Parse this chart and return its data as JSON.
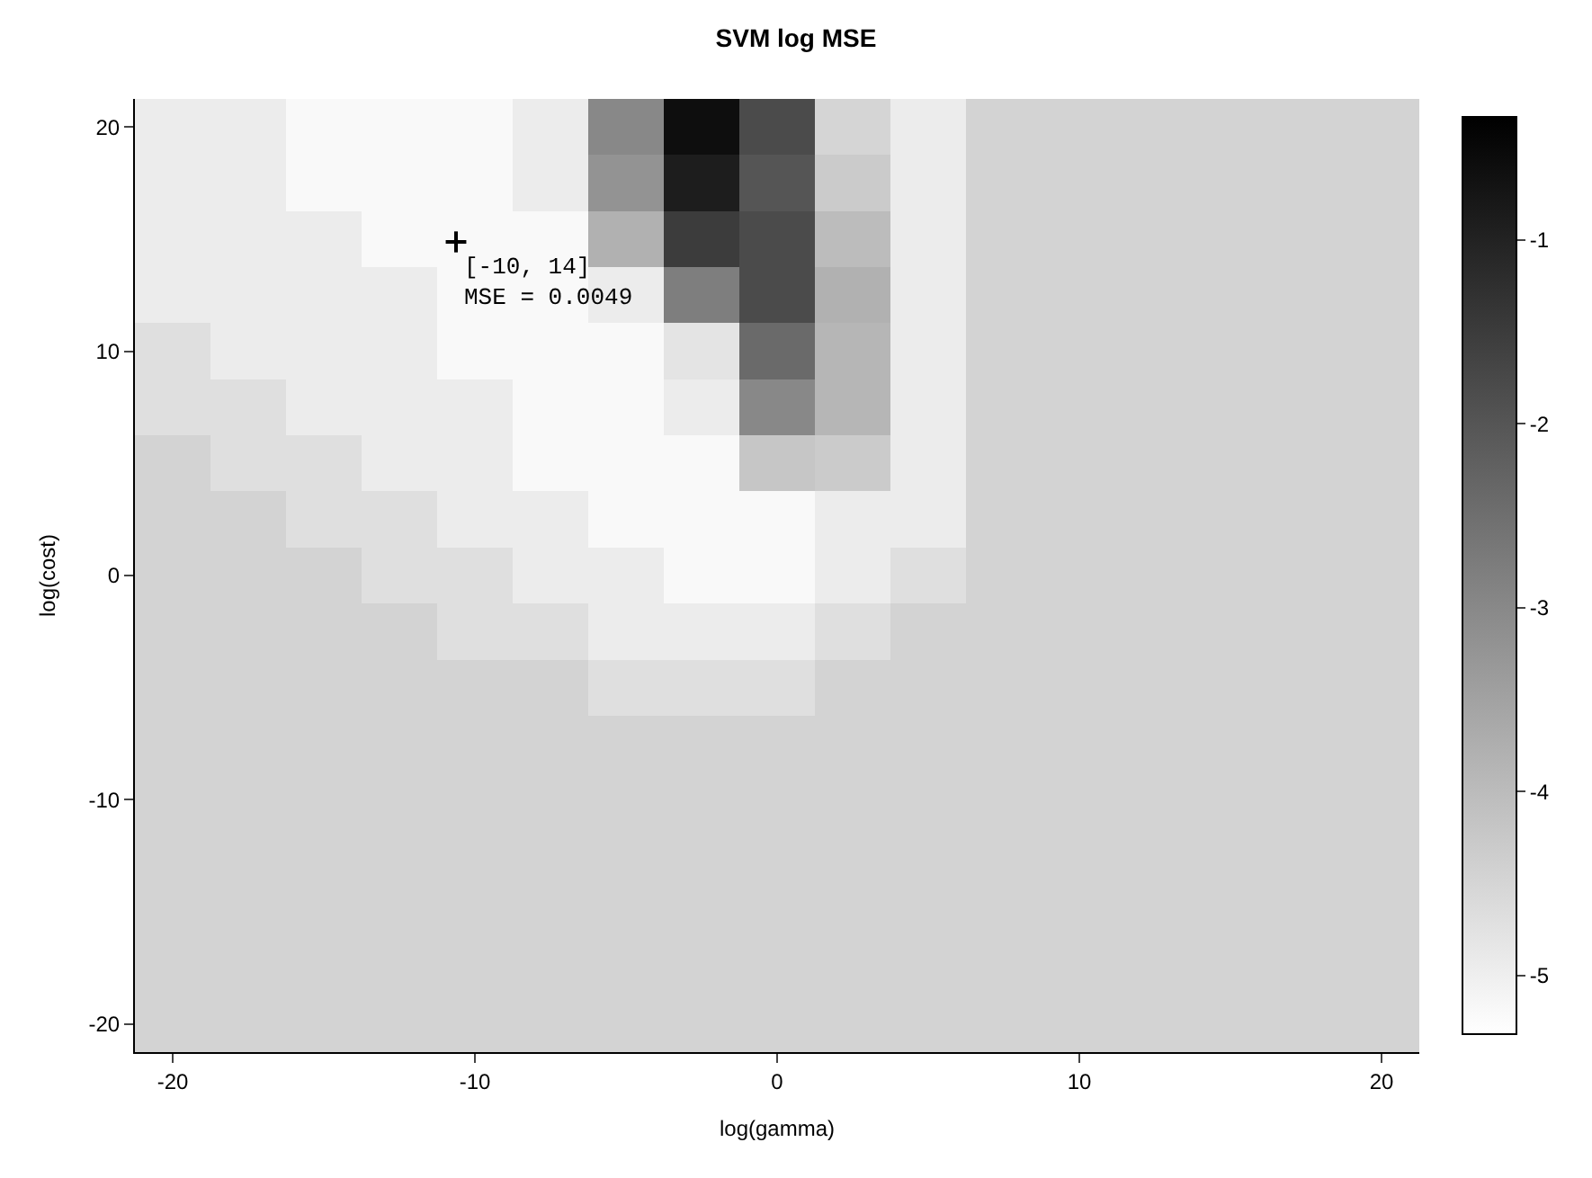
{
  "chart_data": {
    "type": "heatmap",
    "title": "SVM log MSE",
    "xlabel": "log(gamma)",
    "ylabel": "log(cost)",
    "categories": [
      "-20",
      null,
      null,
      null,
      "-10",
      null,
      null,
      null,
      "0",
      null,
      null,
      null,
      "10",
      null,
      null,
      null,
      "20"
    ],
    "y_categories": [
      "20",
      null,
      null,
      null,
      "10",
      null,
      null,
      null,
      "0",
      null,
      null,
      null,
      "-10",
      null,
      null,
      null,
      "-20"
    ],
    "cells": [
      [
        -4.95,
        -4.95,
        -5.2,
        -5.2,
        -5.2,
        -4.95,
        -3.0,
        -0.6,
        -1.8,
        -4.5,
        -4.95,
        -4.45,
        -4.45,
        -4.45,
        -4.45,
        -4.45,
        -4.45
      ],
      [
        -4.95,
        -4.95,
        -5.2,
        -5.2,
        -5.2,
        -4.95,
        -3.2,
        -0.9,
        -2.0,
        -4.3,
        -4.95,
        -4.45,
        -4.45,
        -4.45,
        -4.45,
        -4.45,
        -4.45
      ],
      [
        -4.95,
        -4.95,
        -4.95,
        -5.2,
        -5.2,
        -5.2,
        -3.8,
        -1.5,
        -1.8,
        -4.0,
        -4.95,
        -4.45,
        -4.45,
        -4.45,
        -4.45,
        -4.45,
        -4.45
      ],
      [
        -4.95,
        -4.95,
        -4.95,
        -4.95,
        -5.2,
        -5.2,
        -4.95,
        -2.8,
        -1.8,
        -3.8,
        -4.95,
        -4.45,
        -4.45,
        -4.45,
        -4.45,
        -4.45,
        -4.45
      ],
      [
        -4.7,
        -4.95,
        -4.95,
        -4.95,
        -5.2,
        -5.2,
        -5.2,
        -4.8,
        -2.4,
        -3.9,
        -4.95,
        -4.45,
        -4.45,
        -4.45,
        -4.45,
        -4.45,
        -4.45
      ],
      [
        -4.7,
        -4.7,
        -4.95,
        -4.95,
        -4.95,
        -5.2,
        -5.2,
        -4.95,
        -3.0,
        -3.9,
        -4.95,
        -4.45,
        -4.45,
        -4.45,
        -4.45,
        -4.45,
        -4.45
      ],
      [
        -4.45,
        -4.7,
        -4.7,
        -4.95,
        -4.95,
        -5.2,
        -5.2,
        -5.2,
        -4.2,
        -4.3,
        -4.95,
        -4.45,
        -4.45,
        -4.45,
        -4.45,
        -4.45,
        -4.45
      ],
      [
        -4.45,
        -4.45,
        -4.7,
        -4.7,
        -4.95,
        -4.95,
        -5.2,
        -5.2,
        -5.2,
        -4.95,
        -4.95,
        -4.45,
        -4.45,
        -4.45,
        -4.45,
        -4.45,
        -4.45
      ],
      [
        -4.45,
        -4.45,
        -4.45,
        -4.7,
        -4.7,
        -4.95,
        -4.95,
        -5.2,
        -5.2,
        -4.95,
        -4.7,
        -4.45,
        -4.45,
        -4.45,
        -4.45,
        -4.45,
        -4.45
      ],
      [
        -4.45,
        -4.45,
        -4.45,
        -4.45,
        -4.7,
        -4.7,
        -4.95,
        -4.95,
        -4.95,
        -4.7,
        -4.45,
        -4.45,
        -4.45,
        -4.45,
        -4.45,
        -4.45,
        -4.45
      ],
      [
        -4.45,
        -4.45,
        -4.45,
        -4.45,
        -4.45,
        -4.45,
        -4.7,
        -4.7,
        -4.7,
        -4.45,
        -4.45,
        -4.45,
        -4.45,
        -4.45,
        -4.45,
        -4.45,
        -4.45
      ],
      [
        -4.45,
        -4.45,
        -4.45,
        -4.45,
        -4.45,
        -4.45,
        -4.45,
        -4.45,
        -4.45,
        -4.45,
        -4.45,
        -4.45,
        -4.45,
        -4.45,
        -4.45,
        -4.45,
        -4.45
      ],
      [
        -4.45,
        -4.45,
        -4.45,
        -4.45,
        -4.45,
        -4.45,
        -4.45,
        -4.45,
        -4.45,
        -4.45,
        -4.45,
        -4.45,
        -4.45,
        -4.45,
        -4.45,
        -4.45,
        -4.45
      ],
      [
        -4.45,
        -4.45,
        -4.45,
        -4.45,
        -4.45,
        -4.45,
        -4.45,
        -4.45,
        -4.45,
        -4.45,
        -4.45,
        -4.45,
        -4.45,
        -4.45,
        -4.45,
        -4.45,
        -4.45
      ],
      [
        -4.45,
        -4.45,
        -4.45,
        -4.45,
        -4.45,
        -4.45,
        -4.45,
        -4.45,
        -4.45,
        -4.45,
        -4.45,
        -4.45,
        -4.45,
        -4.45,
        -4.45,
        -4.45,
        -4.45
      ],
      [
        -4.45,
        -4.45,
        -4.45,
        -4.45,
        -4.45,
        -4.45,
        -4.45,
        -4.45,
        -4.45,
        -4.45,
        -4.45,
        -4.45,
        -4.45,
        -4.45,
        -4.45,
        -4.45,
        -4.45
      ],
      [
        -4.45,
        -4.45,
        -4.45,
        -4.45,
        -4.45,
        -4.45,
        -4.45,
        -4.45,
        -4.45,
        -4.45,
        -4.45,
        -4.45,
        -4.45,
        -4.45,
        -4.45,
        -4.45,
        -4.45
      ]
    ],
    "clim": [
      -5.32,
      -0.33
    ],
    "cticks": [
      -5,
      -4,
      -3,
      -2,
      -1
    ],
    "annotations": [
      "[-10, 14]\nMSE = 0.0049"
    ]
  }
}
